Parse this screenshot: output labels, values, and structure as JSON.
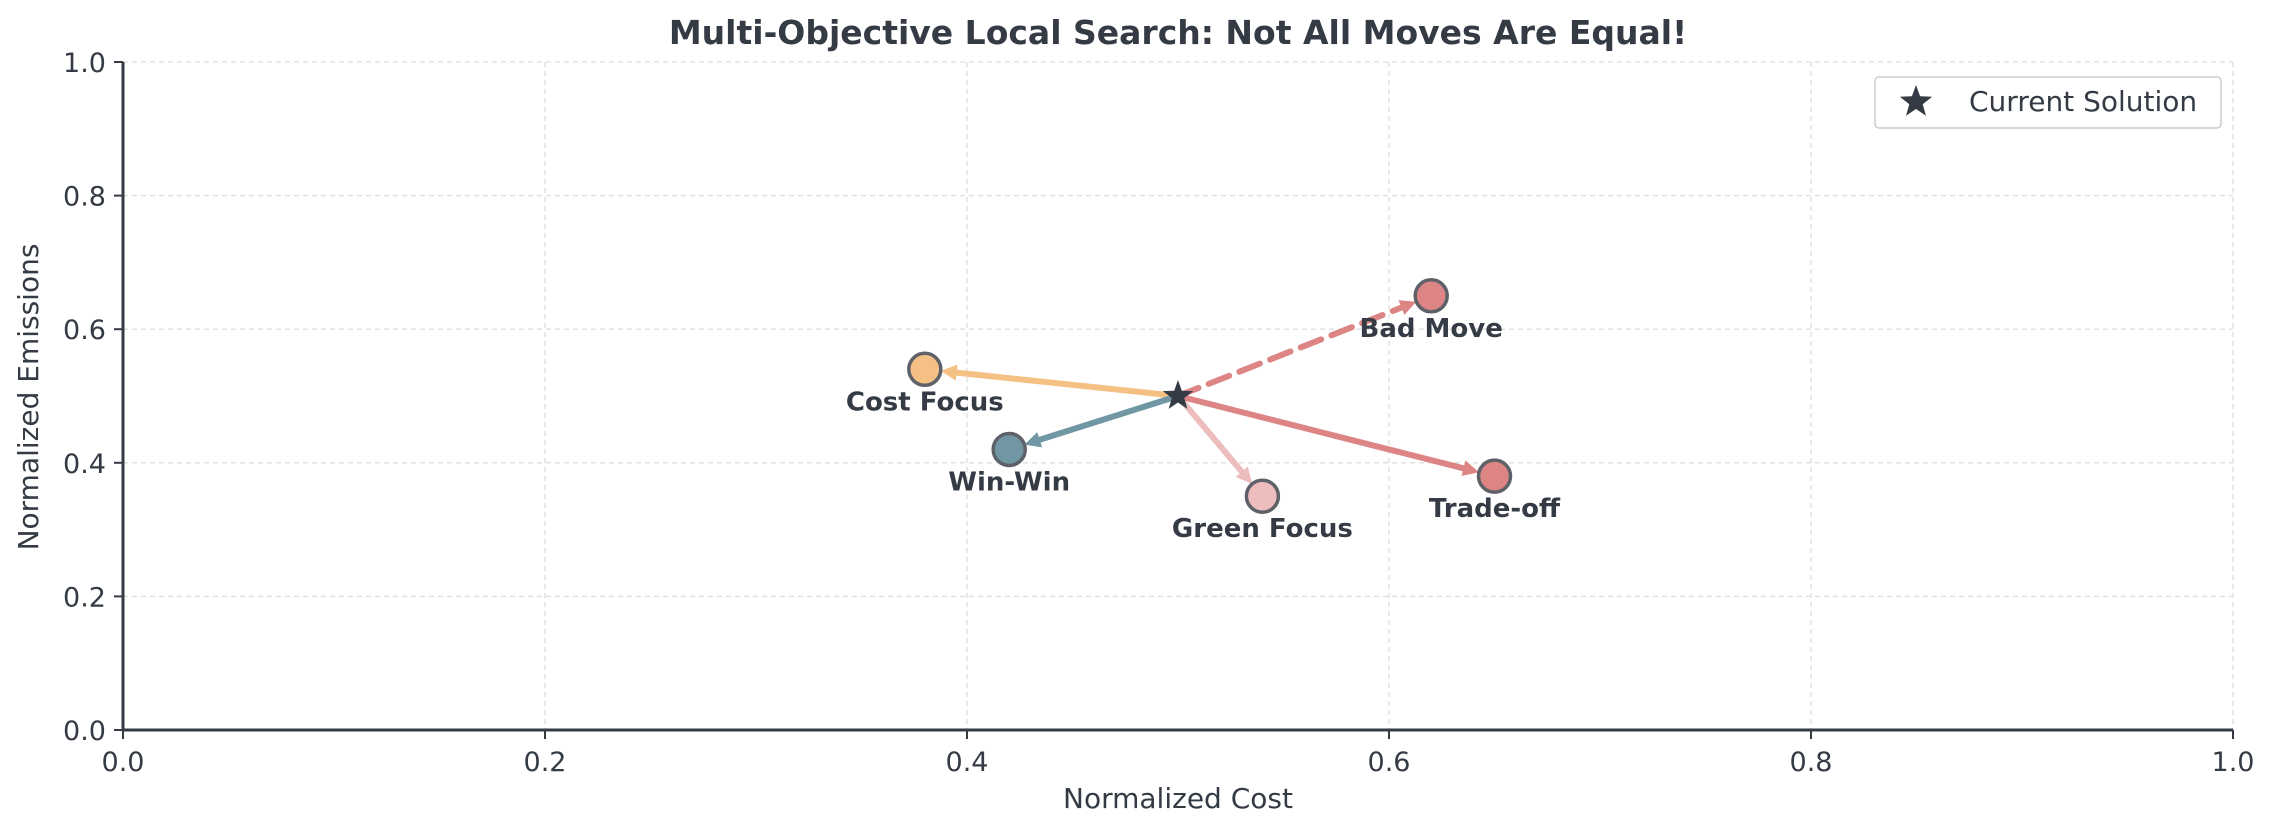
{
  "chart_data": {
    "type": "scatter",
    "title": "Multi-Objective Local Search: Not All Moves Are Equal!",
    "xlabel": "Normalized Cost",
    "ylabel": "Normalized Emissions",
    "xlim": [
      0.0,
      1.0
    ],
    "ylim": [
      0.0,
      1.0
    ],
    "x_ticks": [
      "0.0",
      "0.2",
      "0.4",
      "0.6",
      "0.8",
      "1.0"
    ],
    "y_ticks": [
      "0.0",
      "0.2",
      "0.4",
      "0.6",
      "0.8",
      "1.0"
    ],
    "grid": true,
    "legend_position": "top-right",
    "current_solution": {
      "name": "Current Solution",
      "x": 0.5,
      "y": 0.5,
      "color": "#353b45",
      "marker": "star"
    },
    "moves": [
      {
        "label": "Cost Focus",
        "x": 0.38,
        "y": 0.54,
        "color": "#f5c084",
        "dashed": false,
        "label_side": "below"
      },
      {
        "label": "Win-Win",
        "x": 0.42,
        "y": 0.42,
        "color": "#7097a3",
        "dashed": false,
        "label_side": "below"
      },
      {
        "label": "Green Focus",
        "x": 0.54,
        "y": 0.35,
        "color": "#edbcbc",
        "dashed": false,
        "label_side": "below"
      },
      {
        "label": "Trade-off",
        "x": 0.65,
        "y": 0.38,
        "color": "#dd8585",
        "dashed": false,
        "label_side": "below"
      },
      {
        "label": "Bad Move",
        "x": 0.62,
        "y": 0.65,
        "color": "#dd8585",
        "dashed": true,
        "label_side": "below"
      }
    ],
    "colors": {
      "text": "#353b45",
      "axis": "#353b45",
      "grid": "#dddddd",
      "point_edge": "#5f6169"
    }
  }
}
